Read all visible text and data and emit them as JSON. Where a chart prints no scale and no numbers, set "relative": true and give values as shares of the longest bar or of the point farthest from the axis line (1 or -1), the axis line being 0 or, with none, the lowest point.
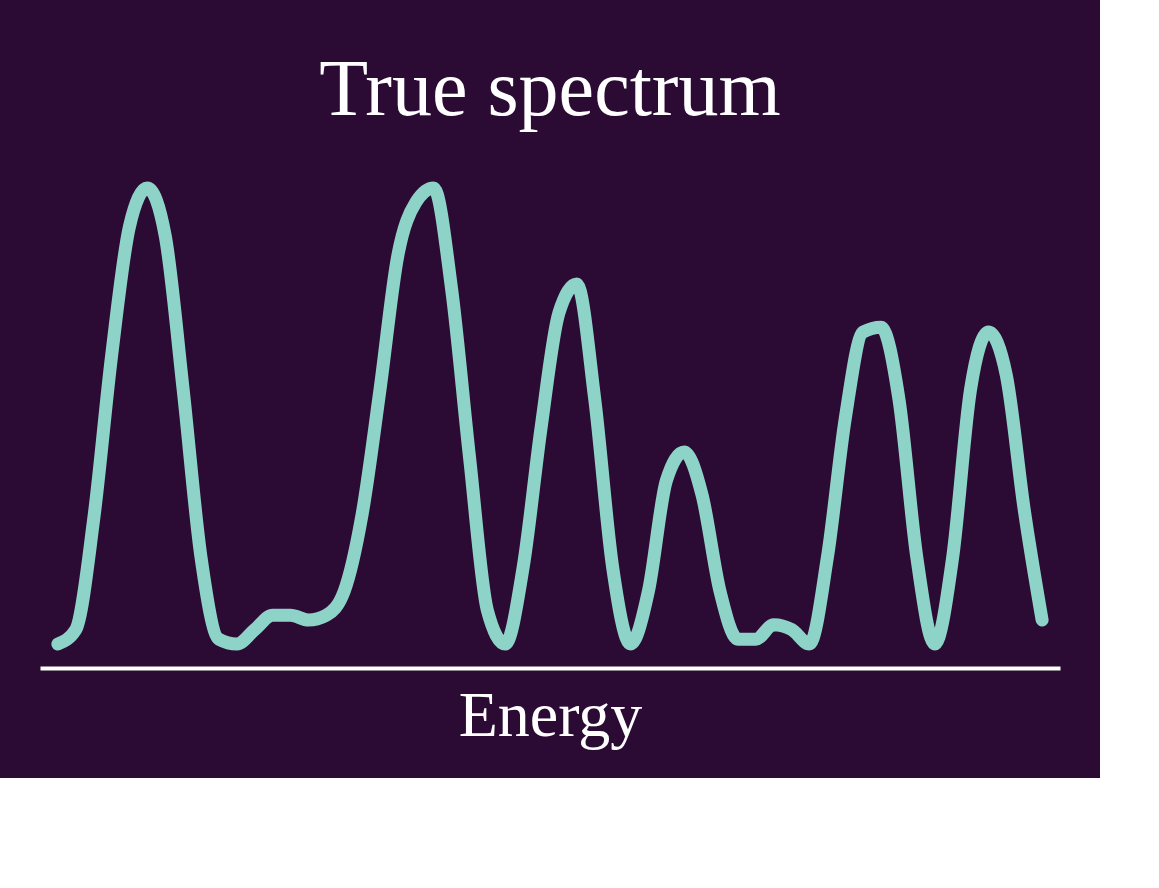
{
  "chart_data": {
    "type": "line",
    "title": "True spectrum",
    "xlabel": "Energy",
    "relative": true,
    "grid": false,
    "line_style": "solid",
    "categories": [
      null,
      null,
      null,
      null,
      null,
      null,
      null,
      null,
      null,
      null,
      null,
      null,
      null,
      null,
      null,
      null,
      null,
      null,
      null,
      null,
      null,
      null,
      null,
      null,
      null,
      null,
      null,
      null,
      null,
      null,
      null,
      null,
      null,
      null,
      null,
      null,
      null,
      null,
      null,
      null,
      null,
      null,
      null,
      null,
      null,
      null,
      null,
      null,
      null,
      null,
      null,
      null,
      null,
      null,
      null,
      null
    ],
    "series": [
      {
        "color": "#8ed3c7",
        "values": [
          0.05,
          0.08,
          0.31,
          0.65,
          0.92,
          1.0,
          0.9,
          0.58,
          0.23,
          0.06,
          0.05,
          0.08,
          0.11,
          0.11,
          0.1,
          0.11,
          0.16,
          0.32,
          0.58,
          0.86,
          0.97,
          1.0,
          0.79,
          0.44,
          0.12,
          0.05,
          0.21,
          0.5,
          0.74,
          0.8,
          0.56,
          0.21,
          0.05,
          0.16,
          0.39,
          0.45,
          0.36,
          0.16,
          0.06,
          0.06,
          0.09,
          0.08,
          0.05,
          0.23,
          0.52,
          0.7,
          0.71,
          0.56,
          0.23,
          0.05,
          0.23,
          0.58,
          0.7,
          0.61,
          0.33,
          0.1
        ]
      }
    ]
  }
}
